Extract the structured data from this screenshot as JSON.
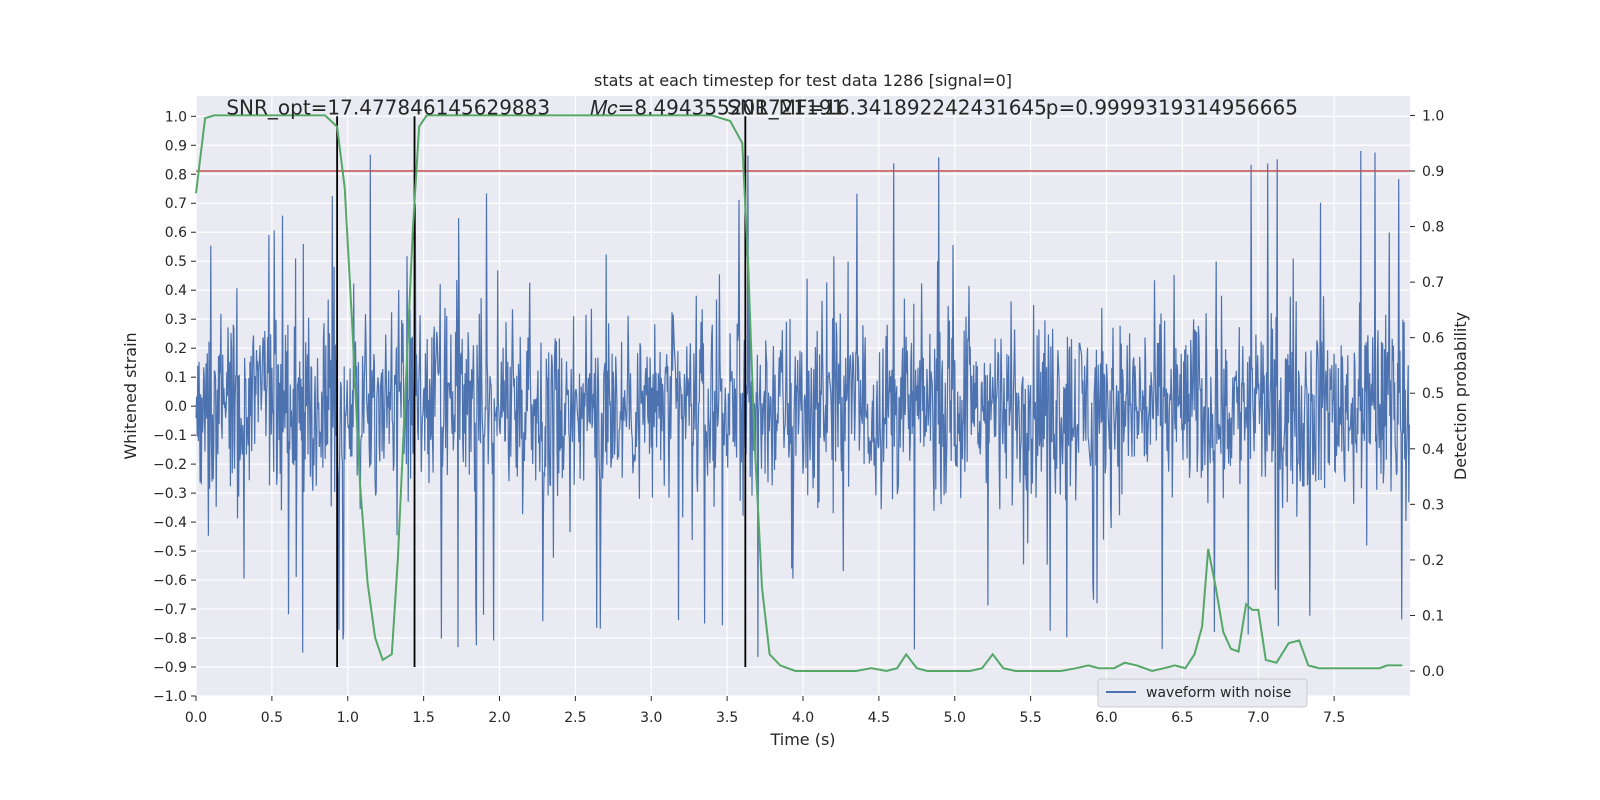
{
  "chart_data": {
    "type": "line",
    "title": "stats at each timestep for test data 1286 [signal=0]",
    "xlabel": "Time (s)",
    "ylabel": "Whitened strain",
    "y2label": "Detection probability",
    "xlim": [
      0.0,
      8.0
    ],
    "ylim": [
      -1.0,
      1.07
    ],
    "y2lim": [
      -0.045,
      1.035
    ],
    "x_ticks": [
      0.0,
      0.5,
      1.0,
      1.5,
      2.0,
      2.5,
      3.0,
      3.5,
      4.0,
      4.5,
      5.0,
      5.5,
      6.0,
      6.5,
      7.0,
      7.5
    ],
    "x_tick_labels": [
      "0.0",
      "0.5",
      "1.0",
      "1.5",
      "2.0",
      "2.5",
      "3.0",
      "3.5",
      "4.0",
      "4.5",
      "5.0",
      "5.5",
      "6.0",
      "6.5",
      "7.0",
      "7.5"
    ],
    "y_ticks": [
      -1.0,
      -0.9,
      -0.8,
      -0.7,
      -0.6,
      -0.5,
      -0.4,
      -0.3,
      -0.2,
      -0.1,
      0.0,
      0.1,
      0.2,
      0.3,
      0.4,
      0.5,
      0.6,
      0.7,
      0.8,
      0.9,
      1.0
    ],
    "y_tick_labels": [
      "−1.0",
      "−0.9",
      "−0.8",
      "−0.7",
      "−0.6",
      "−0.5",
      "−0.4",
      "−0.3",
      "−0.2",
      "−0.1",
      "0.0",
      "0.1",
      "0.2",
      "0.3",
      "0.4",
      "0.5",
      "0.6",
      "0.7",
      "0.8",
      "0.9",
      "1.0"
    ],
    "y2_ticks": [
      0.0,
      0.1,
      0.2,
      0.3,
      0.4,
      0.5,
      0.6,
      0.7,
      0.8,
      0.9,
      1.0
    ],
    "y2_tick_labels": [
      "0.0",
      "0.1",
      "0.2",
      "0.3",
      "0.4",
      "0.5",
      "0.6",
      "0.7",
      "0.8",
      "0.9",
      "1.0"
    ],
    "grid": true,
    "legend_position": "lower-right",
    "annotations": [
      {
        "text": "SNR_opt=17.477846145629883",
        "x": 0.2,
        "y": 1.03
      },
      {
        "text": "𝑀𝑐=8.494355201721191",
        "x": 2.6,
        "y": 1.03
      },
      {
        "text": "SNR_MF=16.341892242431645",
        "x": 3.5,
        "y": 1.03
      },
      {
        "text": "p=0.9999319314956665",
        "x": 5.6,
        "y": 1.03
      }
    ],
    "threshold": {
      "axis": "y2",
      "value": 0.9,
      "color": "#c44e52"
    },
    "vlines": [
      0.93,
      1.44,
      3.62
    ],
    "colors": {
      "waveform": "#4c72b0",
      "probability": "#55a868",
      "threshold": "#c44e52",
      "vline": "#000000",
      "background": "#eaeaf2"
    },
    "series": [
      {
        "name": "waveform with noise",
        "axis": "y",
        "style": "dense-noise",
        "sample_rate": 256,
        "duration": 8.0,
        "envelope_typical": 0.4,
        "envelope_peak": 0.9
      },
      {
        "axis": "y2",
        "x": [
          0.0,
          0.06,
          0.12,
          0.2,
          0.3,
          0.45,
          0.6,
          0.75,
          0.85,
          0.93,
          0.98,
          1.03,
          1.08,
          1.13,
          1.18,
          1.23,
          1.29,
          1.33,
          1.38,
          1.43,
          1.47,
          1.52,
          1.57,
          1.65,
          1.8,
          2.0,
          2.2,
          2.4,
          2.6,
          2.8,
          3.0,
          3.2,
          3.4,
          3.52,
          3.6,
          3.64,
          3.68,
          3.73,
          3.78,
          3.85,
          3.95,
          4.05,
          4.2,
          4.35,
          4.45,
          4.55,
          4.62,
          4.68,
          4.75,
          4.82,
          4.9,
          5.0,
          5.1,
          5.18,
          5.25,
          5.32,
          5.4,
          5.5,
          5.6,
          5.7,
          5.8,
          5.88,
          5.95,
          6.05,
          6.12,
          6.2,
          6.3,
          6.38,
          6.45,
          6.52,
          6.58,
          6.63,
          6.67,
          6.72,
          6.77,
          6.82,
          6.87,
          6.92,
          6.96,
          7.0,
          7.05,
          7.12,
          7.2,
          7.27,
          7.33,
          7.4,
          7.5,
          7.6,
          7.7,
          7.8,
          7.85,
          7.9,
          7.95
        ],
        "values": [
          0.86,
          0.995,
          1.0,
          1.0,
          1.0,
          1.0,
          1.0,
          1.0,
          1.0,
          0.98,
          0.87,
          0.62,
          0.34,
          0.16,
          0.06,
          0.02,
          0.03,
          0.2,
          0.5,
          0.8,
          0.98,
          1.0,
          1.0,
          1.0,
          1.0,
          1.0,
          1.0,
          1.0,
          1.0,
          1.0,
          1.0,
          1.0,
          1.0,
          0.99,
          0.95,
          0.72,
          0.42,
          0.15,
          0.03,
          0.01,
          0.0,
          0.0,
          0.0,
          0.0,
          0.005,
          0.0,
          0.005,
          0.03,
          0.005,
          0.0,
          0.0,
          0.0,
          0.0,
          0.005,
          0.03,
          0.005,
          0.0,
          0.0,
          0.0,
          0.0,
          0.005,
          0.01,
          0.005,
          0.005,
          0.015,
          0.01,
          0.0,
          0.005,
          0.01,
          0.005,
          0.03,
          0.08,
          0.22,
          0.15,
          0.07,
          0.04,
          0.035,
          0.12,
          0.11,
          0.11,
          0.02,
          0.015,
          0.05,
          0.055,
          0.01,
          0.005,
          0.005,
          0.005,
          0.005,
          0.005,
          0.01,
          0.01,
          0.01
        ]
      }
    ]
  }
}
